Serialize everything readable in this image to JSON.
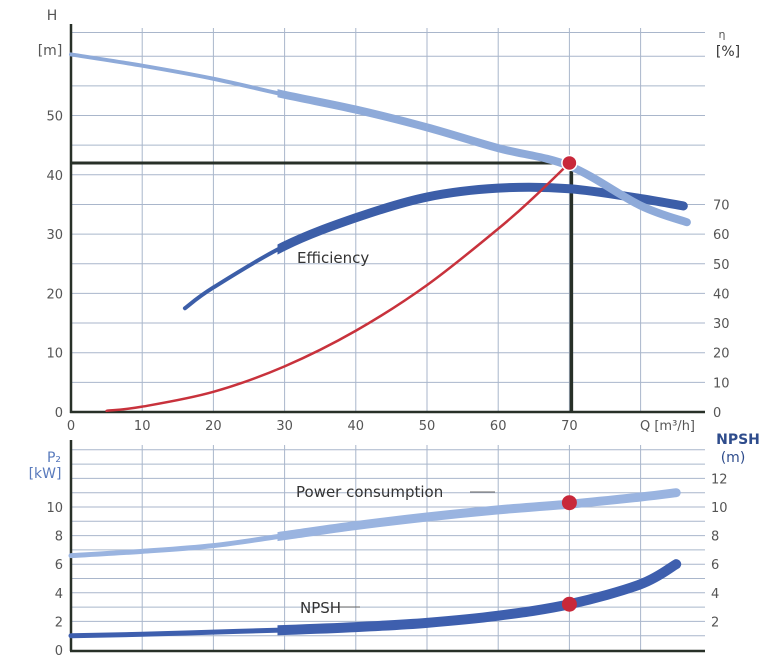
{
  "colors": {
    "head": "#8eaad9",
    "efficiency": "#3c5ea8",
    "system": "#c8323c",
    "power": "#9ab4e0",
    "npsh": "#3e5fae",
    "operating_point": "#c8283a",
    "guide": "#283028",
    "grid": "#a9b6cb"
  },
  "chart_data": [
    {
      "type": "line",
      "xlabel": "Q [m³/h]",
      "ylabel": "H",
      "ylabel_unit": "[m]",
      "y2label": "η",
      "y2label_unit": "[%]",
      "xlim": [
        0,
        90
      ],
      "ylim": [
        0,
        64
      ],
      "y2lim": [
        0,
        128
      ],
      "x_ticks": [
        "0",
        "10",
        "20",
        "30",
        "40",
        "50",
        "60",
        "70"
      ],
      "y_ticks": [
        "0",
        "10",
        "20",
        "30",
        "40",
        "50"
      ],
      "y2_ticks": [
        "0",
        "10",
        "20",
        "30",
        "40",
        "50",
        "60",
        "70"
      ],
      "grid": true,
      "series": [
        {
          "key": "head",
          "axis": "left",
          "x": [
            0,
            10,
            20,
            30,
            40,
            50,
            60,
            70,
            80,
            86.5
          ],
          "y": [
            60.3,
            58.4,
            56.2,
            53.5,
            51,
            48,
            44.5,
            41.5,
            34.8,
            32
          ]
        },
        {
          "key": "efficiency",
          "name": "Efficiency",
          "axis": "right",
          "x": [
            16,
            20,
            30,
            40,
            50,
            60,
            70,
            80,
            86
          ],
          "y": [
            35,
            42,
            56,
            65.5,
            72.5,
            75.5,
            75.3,
            72,
            69.5
          ]
        },
        {
          "key": "system",
          "axis": "left",
          "x": [
            5,
            10,
            20,
            30,
            40,
            50,
            60,
            65,
            70
          ],
          "y": [
            0.2,
            0.9,
            3.4,
            7.7,
            13.7,
            21.4,
            30.9,
            36.2,
            42
          ]
        }
      ],
      "operating_point": {
        "Q": 70,
        "H": 42
      }
    },
    {
      "type": "line",
      "xlabel": "",
      "ylabel": "P₂",
      "ylabel_unit": "[kW]",
      "y2label": "NPSH",
      "y2label_unit": "(m)",
      "xlim": [
        0,
        90
      ],
      "ylim": [
        0,
        14
      ],
      "y2lim": [
        0,
        14
      ],
      "y_ticks": [
        "0",
        "2",
        "4",
        "6",
        "8",
        "10"
      ],
      "y2_ticks": [
        "2",
        "4",
        "6",
        "8",
        "10",
        "12"
      ],
      "grid": true,
      "series": [
        {
          "key": "power",
          "name": "Power consumption",
          "axis": "left",
          "x": [
            0,
            10,
            20,
            30,
            40,
            50,
            60,
            70,
            80,
            85
          ],
          "y": [
            6.6,
            6.9,
            7.3,
            8.0,
            8.7,
            9.3,
            9.8,
            10.2,
            10.7,
            11.0
          ]
        },
        {
          "key": "npsh",
          "name": "NPSH",
          "axis": "right",
          "x": [
            0,
            10,
            20,
            30,
            40,
            50,
            60,
            70,
            80,
            85
          ],
          "y": [
            1.0,
            1.1,
            1.25,
            1.4,
            1.6,
            1.9,
            2.4,
            3.2,
            4.6,
            6.0
          ]
        }
      ],
      "operating_points": [
        {
          "series": "power",
          "Q": 70,
          "value": 10.3
        },
        {
          "series": "npsh",
          "Q": 70,
          "value": 3.2
        }
      ]
    }
  ]
}
